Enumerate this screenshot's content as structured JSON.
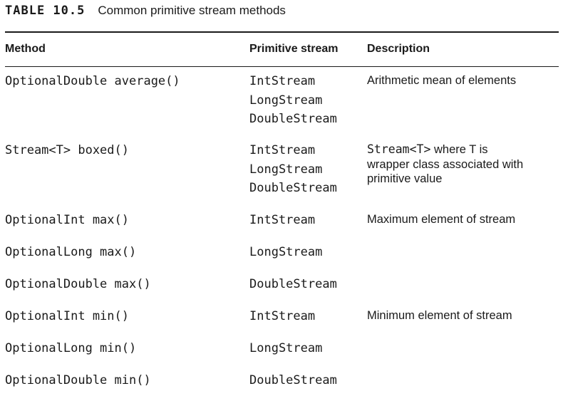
{
  "table": {
    "label": "TABLE 10.5",
    "title": "Common primitive stream methods",
    "headers": {
      "method": "Method",
      "primitive": "Primitive stream",
      "description": "Description"
    },
    "rows": [
      {
        "method": "OptionalDouble average()",
        "streams": [
          "IntStream",
          "LongStream",
          "DoubleStream"
        ],
        "description": "Arithmetic mean of elements"
      },
      {
        "method": "Stream<T> boxed()",
        "streams": [
          "IntStream",
          "LongStream",
          "DoubleStream"
        ],
        "description_code": "Stream<T>",
        "description_first": " where T is",
        "description_rest": "wrapper class associated with primitive value"
      },
      {
        "method": "OptionalInt max()",
        "streams": [
          "IntStream"
        ],
        "description": "Maximum element of stream"
      },
      {
        "method": "OptionalLong max()",
        "streams": [
          "LongStream"
        ],
        "description": ""
      },
      {
        "method": "OptionalDouble max()",
        "streams": [
          "DoubleStream"
        ],
        "description": ""
      },
      {
        "method": "OptionalInt min()",
        "streams": [
          "IntStream"
        ],
        "description": "Minimum element of stream"
      },
      {
        "method": "OptionalLong min()",
        "streams": [
          "LongStream"
        ],
        "description": ""
      },
      {
        "method": "OptionalDouble min()",
        "streams": [
          "DoubleStream"
        ],
        "description": ""
      }
    ]
  }
}
